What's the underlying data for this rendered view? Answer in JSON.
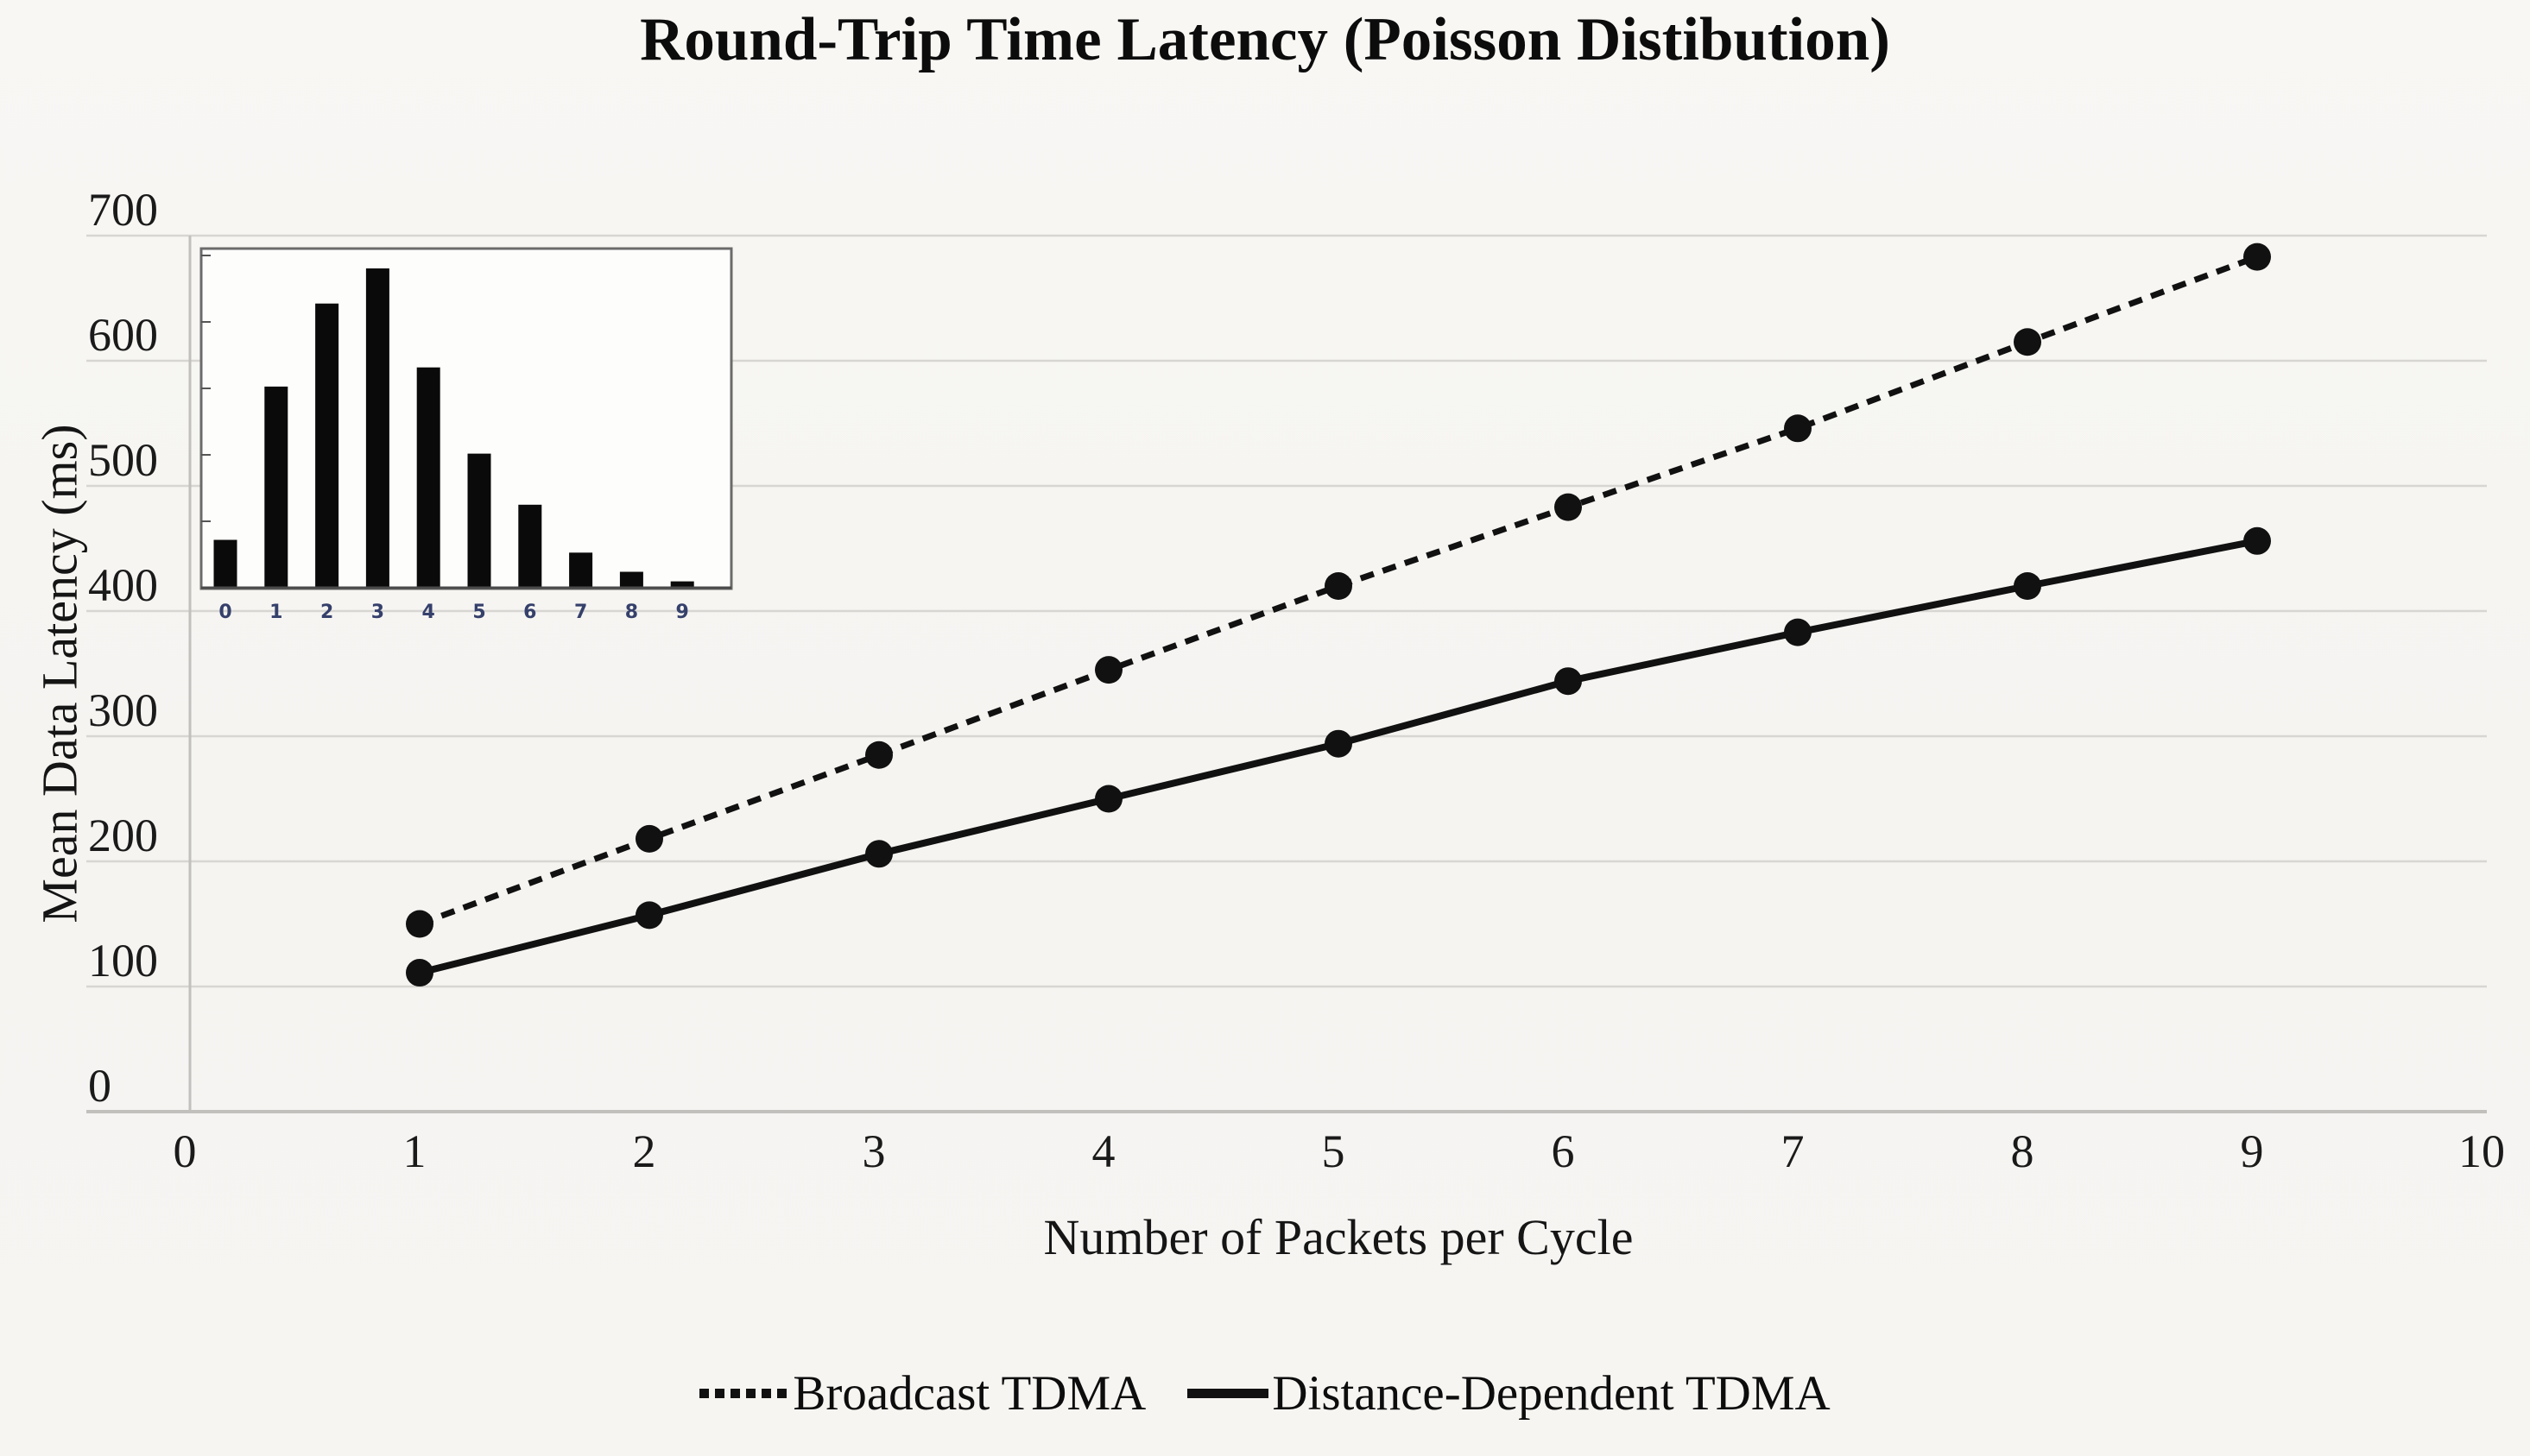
{
  "title": "Round-Trip Time Latency (Poisson Distibution)",
  "chart_data": {
    "type": "line",
    "title": "Round-Trip Time Latency (Poisson Distibution)",
    "xlabel": "Number of Packets per Cycle",
    "ylabel": "Mean Data Latency (ms)",
    "xlim": [
      0,
      10
    ],
    "ylim": [
      0,
      700
    ],
    "x_ticks": [
      0,
      1,
      2,
      3,
      4,
      5,
      6,
      7,
      8,
      9,
      10
    ],
    "y_ticks": [
      0,
      100,
      200,
      300,
      400,
      500,
      600,
      700
    ],
    "grid": "horizontal",
    "legend_position": "bottom",
    "x": [
      1,
      2,
      3,
      4,
      5,
      6,
      7,
      8,
      9
    ],
    "series": [
      {
        "name": "Broadcast TDMA",
        "style": "dotted",
        "marker": "circle",
        "values": [
          150,
          218,
          285,
          353,
          420,
          483,
          546,
          615,
          683
        ]
      },
      {
        "name": "Distance-Dependent TDMA",
        "style": "solid",
        "marker": "circle",
        "values": [
          111,
          157,
          206,
          250,
          294,
          344,
          383,
          420,
          456
        ]
      }
    ],
    "inset": {
      "type": "bar",
      "description": "Poisson distribution histogram (unlabeled y-axis)",
      "categories": [
        "0",
        "1",
        "2",
        "3",
        "4",
        "5",
        "6",
        "7",
        "8",
        "9"
      ],
      "relative_heights": [
        0.15,
        0.63,
        0.89,
        1.0,
        0.69,
        0.42,
        0.26,
        0.11,
        0.05,
        0.02
      ]
    }
  },
  "colors": {
    "ink": "#111111",
    "grid": "#d8d6d2",
    "axis": "#c2c0bc",
    "background": "#f6f5f2",
    "inset_fill": "#fdfdfc",
    "inset_frame": "#6b6b6b",
    "inset_tick_label": "#35406b"
  }
}
